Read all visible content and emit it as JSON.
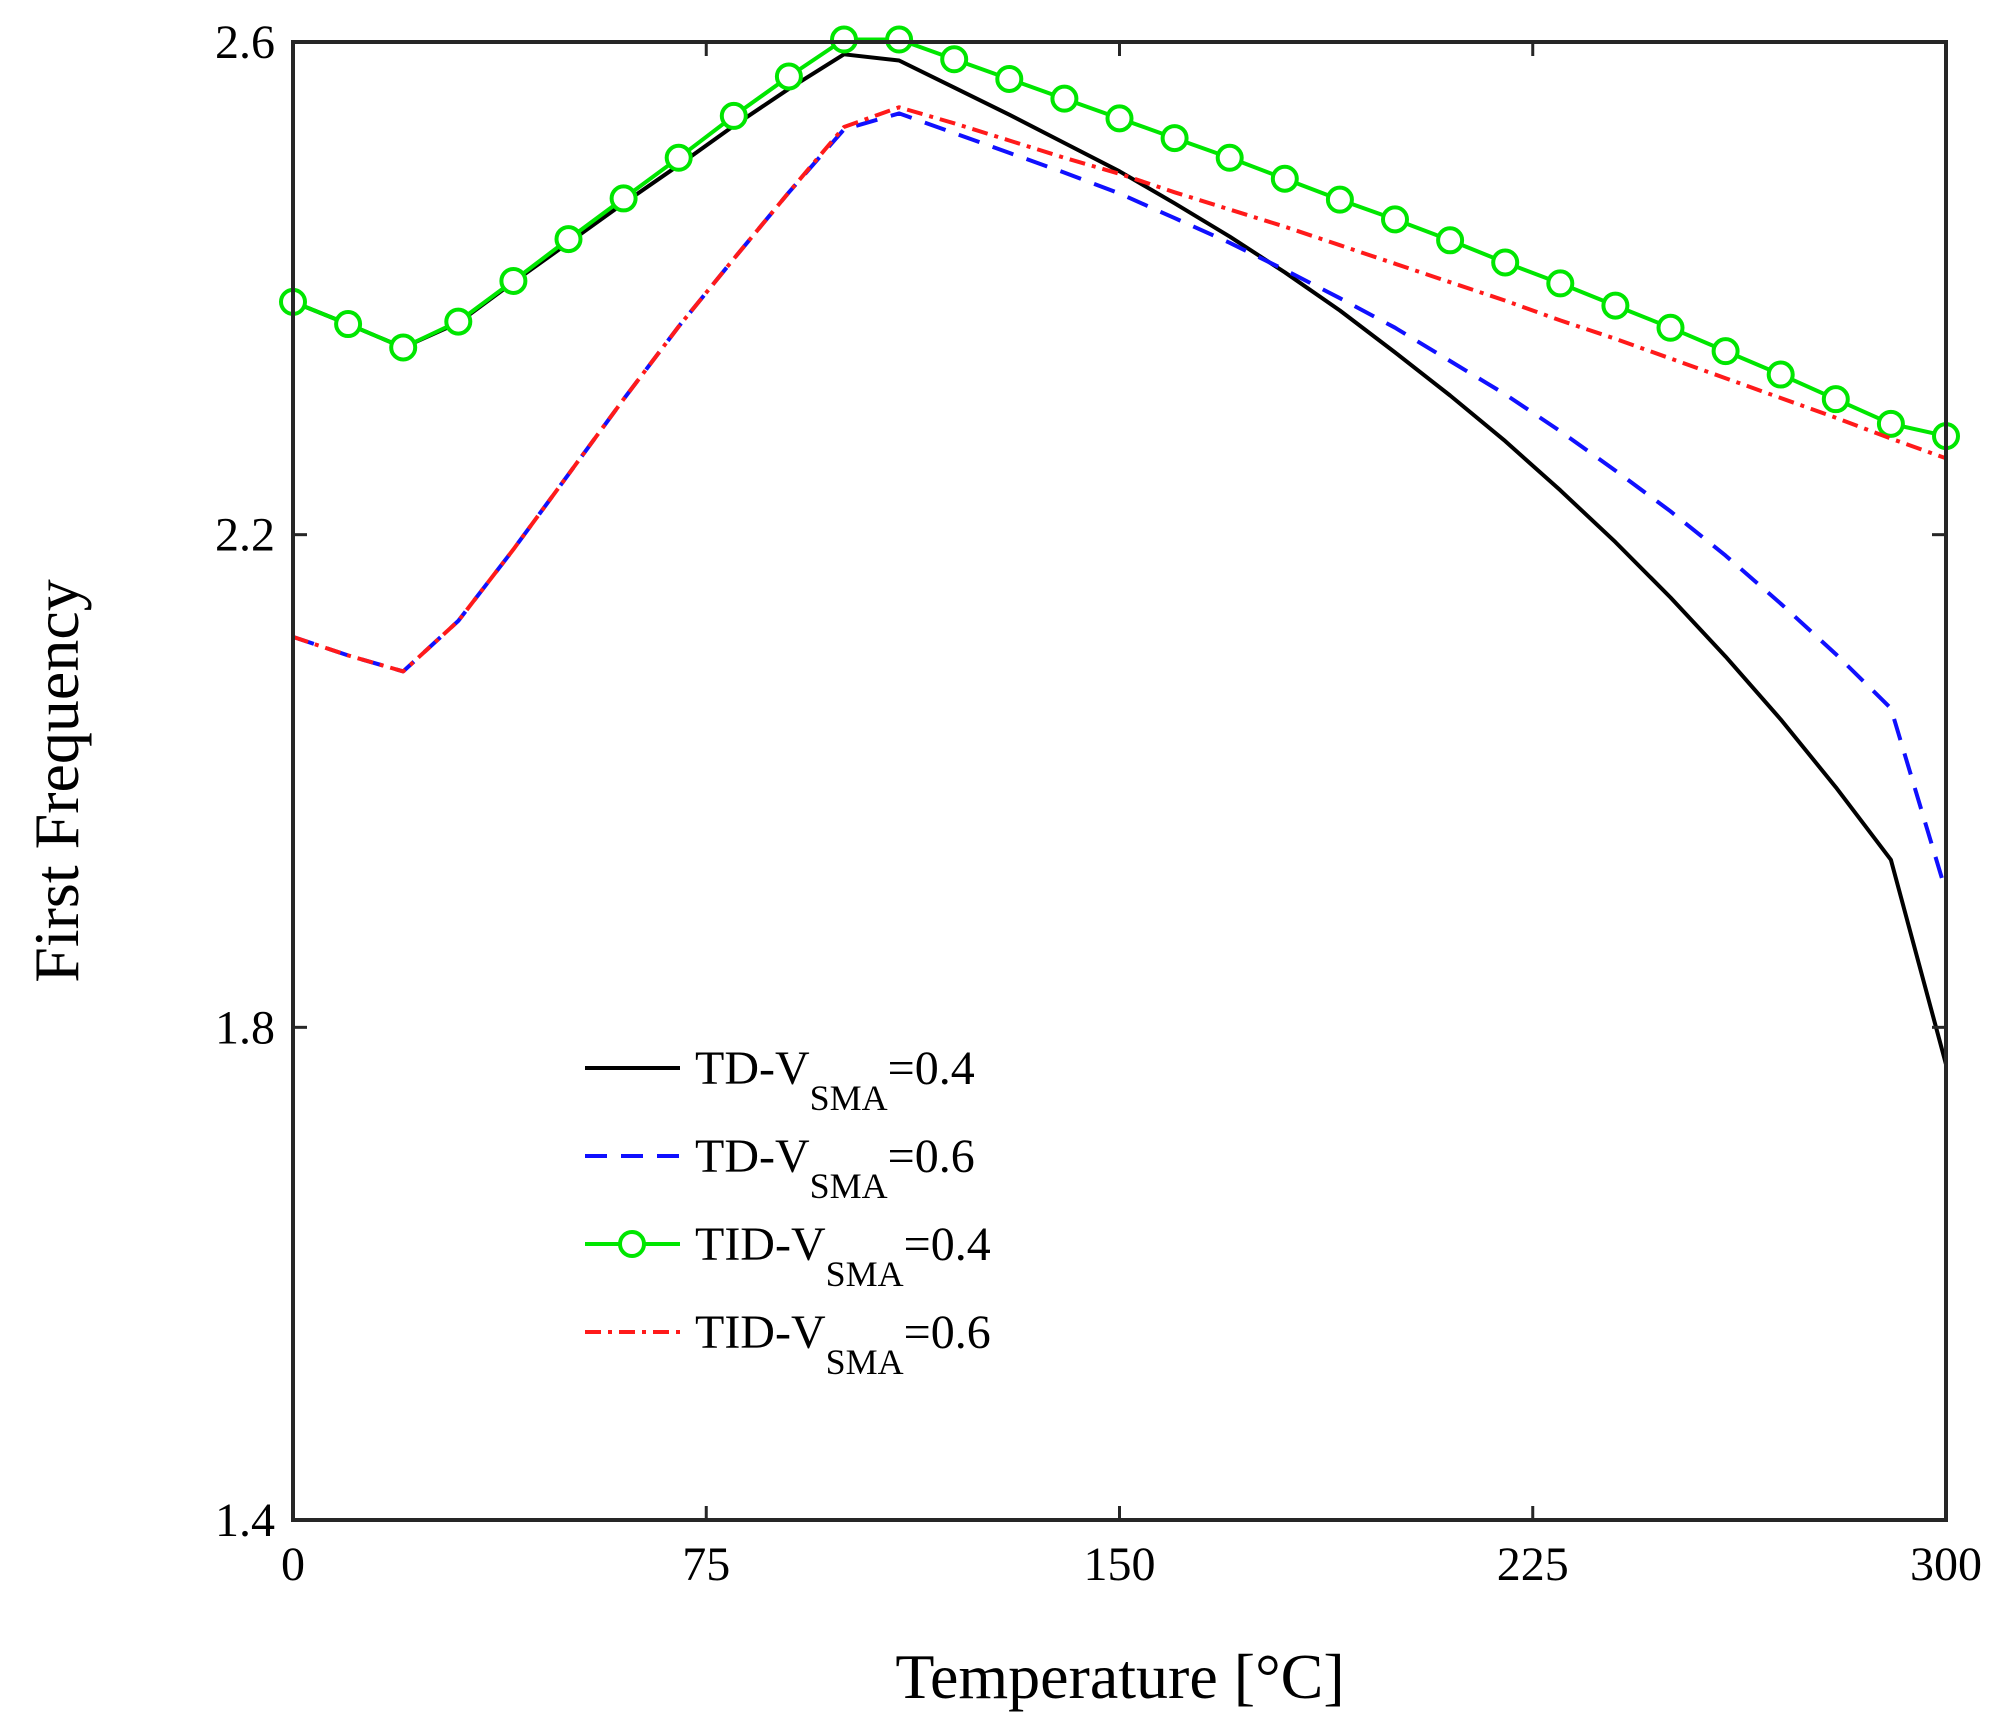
{
  "chart_data": {
    "type": "line",
    "title": "",
    "xlabel": "Temperature [°C]",
    "ylabel": "First Frequency",
    "xlim": [
      0,
      300
    ],
    "ylim": [
      1.4,
      2.6
    ],
    "xticks": [
      "0",
      "75",
      "150",
      "225",
      "300"
    ],
    "yticks": [
      "1.4",
      "1.8",
      "2.2",
      "2.6"
    ],
    "grid": false,
    "legend_position": "lower-left",
    "series": [
      {
        "name": "TD-V_SMA=0.4",
        "label_main": "TD-V",
        "label_sub": "SMA",
        "label_tail": "=0.4",
        "color": "#000000",
        "style": "solid",
        "x": [
          0,
          10,
          20,
          30,
          40,
          50,
          60,
          70,
          80,
          90,
          100,
          110,
          120,
          130,
          140,
          150,
          160,
          170,
          180,
          190,
          200,
          210,
          220,
          230,
          240,
          250,
          260,
          270,
          280,
          290,
          300
        ],
        "y": [
          2.389,
          2.371,
          2.352,
          2.372,
          2.405,
          2.437,
          2.469,
          2.5,
          2.532,
          2.562,
          2.59,
          2.585,
          2.563,
          2.541,
          2.518,
          2.495,
          2.469,
          2.442,
          2.413,
          2.382,
          2.348,
          2.313,
          2.276,
          2.236,
          2.194,
          2.149,
          2.101,
          2.05,
          1.995,
          1.936,
          1.77
        ]
      },
      {
        "name": "TD-V_SMA=0.6",
        "label_main": "TD-V",
        "label_sub": "SMA",
        "label_tail": "=0.6",
        "color": "#1010ff",
        "style": "dashed",
        "x": [
          0,
          10,
          20,
          30,
          40,
          50,
          60,
          70,
          80,
          90,
          100,
          110,
          120,
          130,
          140,
          150,
          160,
          170,
          180,
          190,
          200,
          210,
          220,
          230,
          240,
          250,
          260,
          270,
          280,
          290,
          300
        ],
        "y": [
          2.117,
          2.102,
          2.089,
          2.13,
          2.188,
          2.249,
          2.31,
          2.369,
          2.424,
          2.478,
          2.529,
          2.542,
          2.526,
          2.51,
          2.494,
          2.477,
          2.457,
          2.437,
          2.415,
          2.392,
          2.368,
          2.341,
          2.314,
          2.284,
          2.252,
          2.219,
          2.183,
          2.144,
          2.103,
          2.059,
          1.91
        ]
      },
      {
        "name": "TID-V_SMA=0.4",
        "label_main": "TID-V",
        "label_sub": "SMA",
        "label_tail": "=0.4",
        "color": "#00e600",
        "style": "solid-circle",
        "x": [
          0,
          10,
          20,
          30,
          40,
          50,
          60,
          70,
          80,
          90,
          100,
          110,
          120,
          130,
          140,
          150,
          160,
          170,
          180,
          190,
          200,
          210,
          220,
          230,
          240,
          250,
          260,
          270,
          280,
          290,
          300
        ],
        "y": [
          2.389,
          2.371,
          2.352,
          2.373,
          2.406,
          2.44,
          2.473,
          2.506,
          2.54,
          2.572,
          2.602,
          2.602,
          2.586,
          2.57,
          2.554,
          2.538,
          2.522,
          2.506,
          2.489,
          2.472,
          2.456,
          2.439,
          2.421,
          2.404,
          2.386,
          2.368,
          2.349,
          2.33,
          2.31,
          2.29,
          2.28
        ]
      },
      {
        "name": "TID-V_SMA=0.6",
        "label_main": "TID-V",
        "label_sub": "SMA",
        "label_tail": "=0.6",
        "color": "#ff1a1a",
        "style": "dashdot",
        "x": [
          0,
          10,
          20,
          30,
          40,
          50,
          60,
          70,
          80,
          90,
          100,
          110,
          120,
          130,
          140,
          150,
          160,
          170,
          180,
          190,
          200,
          210,
          220,
          230,
          240,
          250,
          260,
          270,
          280,
          290,
          300
        ],
        "y": [
          2.117,
          2.102,
          2.089,
          2.13,
          2.188,
          2.249,
          2.31,
          2.369,
          2.424,
          2.478,
          2.531,
          2.547,
          2.534,
          2.52,
          2.506,
          2.493,
          2.478,
          2.464,
          2.45,
          2.435,
          2.42,
          2.405,
          2.39,
          2.374,
          2.359,
          2.343,
          2.327,
          2.311,
          2.295,
          2.278,
          2.262
        ]
      }
    ]
  }
}
